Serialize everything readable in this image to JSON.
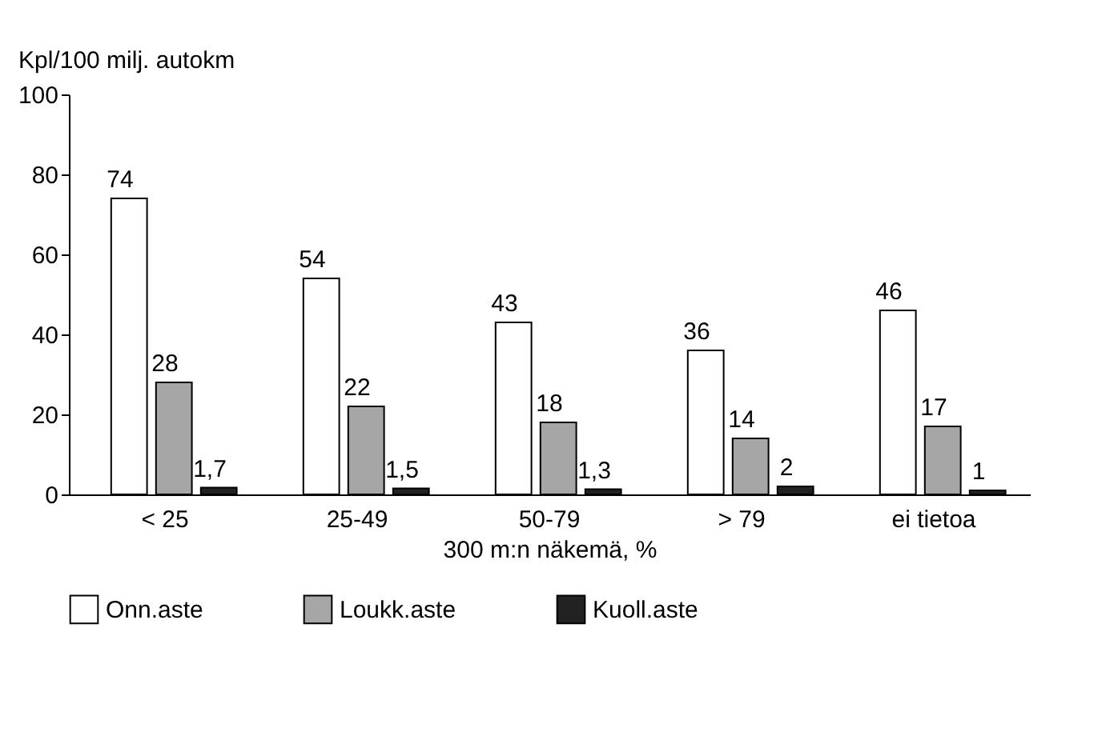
{
  "chart_data": {
    "type": "bar",
    "ylabel": "Kpl/100 milj. autokm",
    "xlabel": "300 m:n näkemä, %",
    "categories": [
      "< 25",
      "25-49",
      "50-79",
      "> 79",
      "ei tietoa"
    ],
    "series": [
      {
        "name": "Onn.aste",
        "color": "#ffffff",
        "values": [
          74,
          54,
          43,
          36,
          46
        ],
        "value_labels": [
          "74",
          "54",
          "43",
          "36",
          "46"
        ]
      },
      {
        "name": "Loukk.aste",
        "color": "#a6a6a6",
        "values": [
          28,
          22,
          18,
          14,
          17
        ],
        "value_labels": [
          "28",
          "22",
          "18",
          "14",
          "17"
        ]
      },
      {
        "name": "Kuoll.aste",
        "color": "#222222",
        "values": [
          1.7,
          1.5,
          1.3,
          2,
          1
        ],
        "value_labels": [
          "1,7",
          "1,5",
          "1,3",
          "2",
          "1"
        ]
      }
    ],
    "ylim": [
      0,
      100
    ],
    "yticks": [
      0,
      20,
      40,
      60,
      80,
      100
    ],
    "legend": "bottom"
  }
}
